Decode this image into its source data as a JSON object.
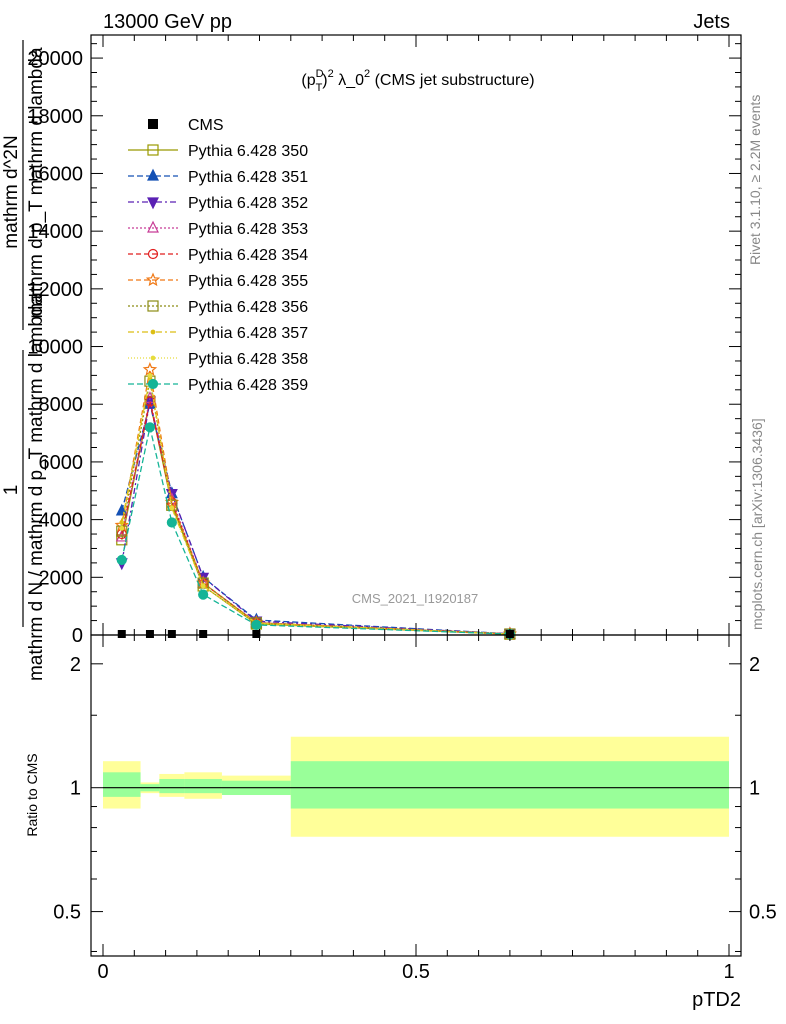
{
  "header": {
    "left": "13000 GeV pp",
    "right": "Jets"
  },
  "side_labels": {
    "rivet": "Rivet 3.1.10, ≥ 2.2M events",
    "mcplots": "mcplots.cern.ch [arXiv:1306.3436]"
  },
  "colors": {
    "ratio_inner": "#99ff99",
    "ratio_outer": "#ffff99"
  },
  "chart_data": [
    {
      "type": "line",
      "title": "(p_T^D)^2 λ_0^2 (CMS jet substructure)",
      "title_parts": {
        "prefix": "(p",
        "sup": "D",
        "sub": "T",
        "exp": "2",
        "middle": " λ_0",
        "exp2": "2",
        "suffix": " (CMS jet substructure)"
      },
      "watermark": "CMS_2021_I1920187",
      "ylabel_fraction": {
        "numerator": "1",
        "denominator": "mathrm d N / mathrm d p_T mathrm d lambda"
      },
      "ylabel_derivative": {
        "numerator": "mathrm d^2N",
        "denominator": "mathrm d p_T mathrm d lambda"
      },
      "xlim": [
        -0.02,
        1.02
      ],
      "ylim": [
        0,
        20800
      ],
      "yticks": [
        0,
        2000,
        4000,
        6000,
        8000,
        10000,
        12000,
        14000,
        16000,
        18000,
        20000
      ],
      "ytick_labels": [
        "0",
        "2000",
        "4000",
        "6000",
        "8000",
        "10000",
        "12000",
        "14000",
        "16000",
        "18000",
        "20000"
      ],
      "legend_position": "top-left",
      "data": {
        "name": "CMS",
        "x": [
          0.03,
          0.075,
          0.11,
          0.16,
          0.245,
          0.65
        ],
        "y": [
          0,
          0,
          0,
          0,
          0,
          0
        ]
      },
      "x": [
        0.03,
        0.075,
        0.11,
        0.16,
        0.245,
        0.65
      ],
      "series": [
        {
          "name": "Pythia 6.428 350",
          "color": "#999900",
          "dash": "",
          "marker": "square-open",
          "values": [
            3300,
            8100,
            4500,
            1700,
            380,
            30
          ]
        },
        {
          "name": "Pythia 6.428 351",
          "color": "#1450b4",
          "dash": "6,3",
          "marker": "triangle-up",
          "values": [
            4300,
            8000,
            4900,
            2000,
            520,
            40
          ]
        },
        {
          "name": "Pythia 6.428 352",
          "color": "#5a20b4",
          "dash": "6,3,2,3",
          "marker": "triangle-down",
          "values": [
            2500,
            8100,
            4900,
            2000,
            480,
            40
          ]
        },
        {
          "name": "Pythia 6.428 353",
          "color": "#c83c96",
          "dash": "2,2",
          "marker": "triangle-up-open",
          "values": [
            3400,
            8200,
            4700,
            1800,
            430,
            35
          ]
        },
        {
          "name": "Pythia 6.428 354",
          "color": "#e11e1e",
          "dash": "5,3",
          "marker": "circle-open",
          "values": [
            3500,
            8100,
            4600,
            1800,
            420,
            35
          ]
        },
        {
          "name": "Pythia 6.428 355",
          "color": "#f07814",
          "dash": "5,3",
          "marker": "star-open",
          "values": [
            3800,
            9200,
            4600,
            1800,
            430,
            35
          ]
        },
        {
          "name": "Pythia 6.428 356",
          "color": "#8c8c14",
          "dash": "2,2",
          "marker": "square-open",
          "values": [
            3600,
            8800,
            4500,
            1800,
            420,
            35
          ]
        },
        {
          "name": "Pythia 6.428 357",
          "color": "#dcbe14",
          "dash": "6,3,2,3",
          "marker": "dot",
          "values": [
            3900,
            8900,
            4400,
            1700,
            410,
            35
          ]
        },
        {
          "name": "Pythia 6.428 358",
          "color": "#e6dc3c",
          "dash": "1,2",
          "marker": "dot",
          "values": [
            3700,
            9000,
            4400,
            1700,
            400,
            35
          ]
        },
        {
          "name": "Pythia 6.428 359",
          "color": "#14b496",
          "dash": "6,3",
          "marker": "circle",
          "values": [
            2600,
            7200,
            3900,
            1400,
            350,
            30
          ]
        }
      ]
    },
    {
      "type": "area",
      "ylabel": "Ratio to CMS",
      "xlabel": "pTD2",
      "xlim": [
        -0.02,
        1.02
      ],
      "ylim": [
        0.39,
        2.35
      ],
      "log_y": true,
      "yticks": [
        0.5,
        1,
        2
      ],
      "ytick_labels": [
        "0.5",
        "1",
        "2"
      ],
      "xticks": [
        0,
        0.5,
        1
      ],
      "xtick_labels": [
        "0",
        "0.5",
        "1"
      ],
      "bands": [
        {
          "x": [
            0.0,
            0.06
          ],
          "inner": [
            0.95,
            1.09
          ],
          "outer": [
            0.89,
            1.16
          ]
        },
        {
          "x": [
            0.06,
            0.09
          ],
          "inner": [
            0.98,
            1.02
          ],
          "outer": [
            0.97,
            1.03
          ]
        },
        {
          "x": [
            0.09,
            0.13
          ],
          "inner": [
            0.97,
            1.05
          ],
          "outer": [
            0.95,
            1.08
          ]
        },
        {
          "x": [
            0.13,
            0.19
          ],
          "inner": [
            0.97,
            1.05
          ],
          "outer": [
            0.94,
            1.09
          ]
        },
        {
          "x": [
            0.19,
            0.3
          ],
          "inner": [
            0.96,
            1.04
          ],
          "outer": [
            0.96,
            1.07
          ]
        },
        {
          "x": [
            0.3,
            1.0
          ],
          "inner": [
            0.89,
            1.16
          ],
          "outer": [
            0.76,
            1.33
          ]
        }
      ],
      "reference": 1
    }
  ]
}
